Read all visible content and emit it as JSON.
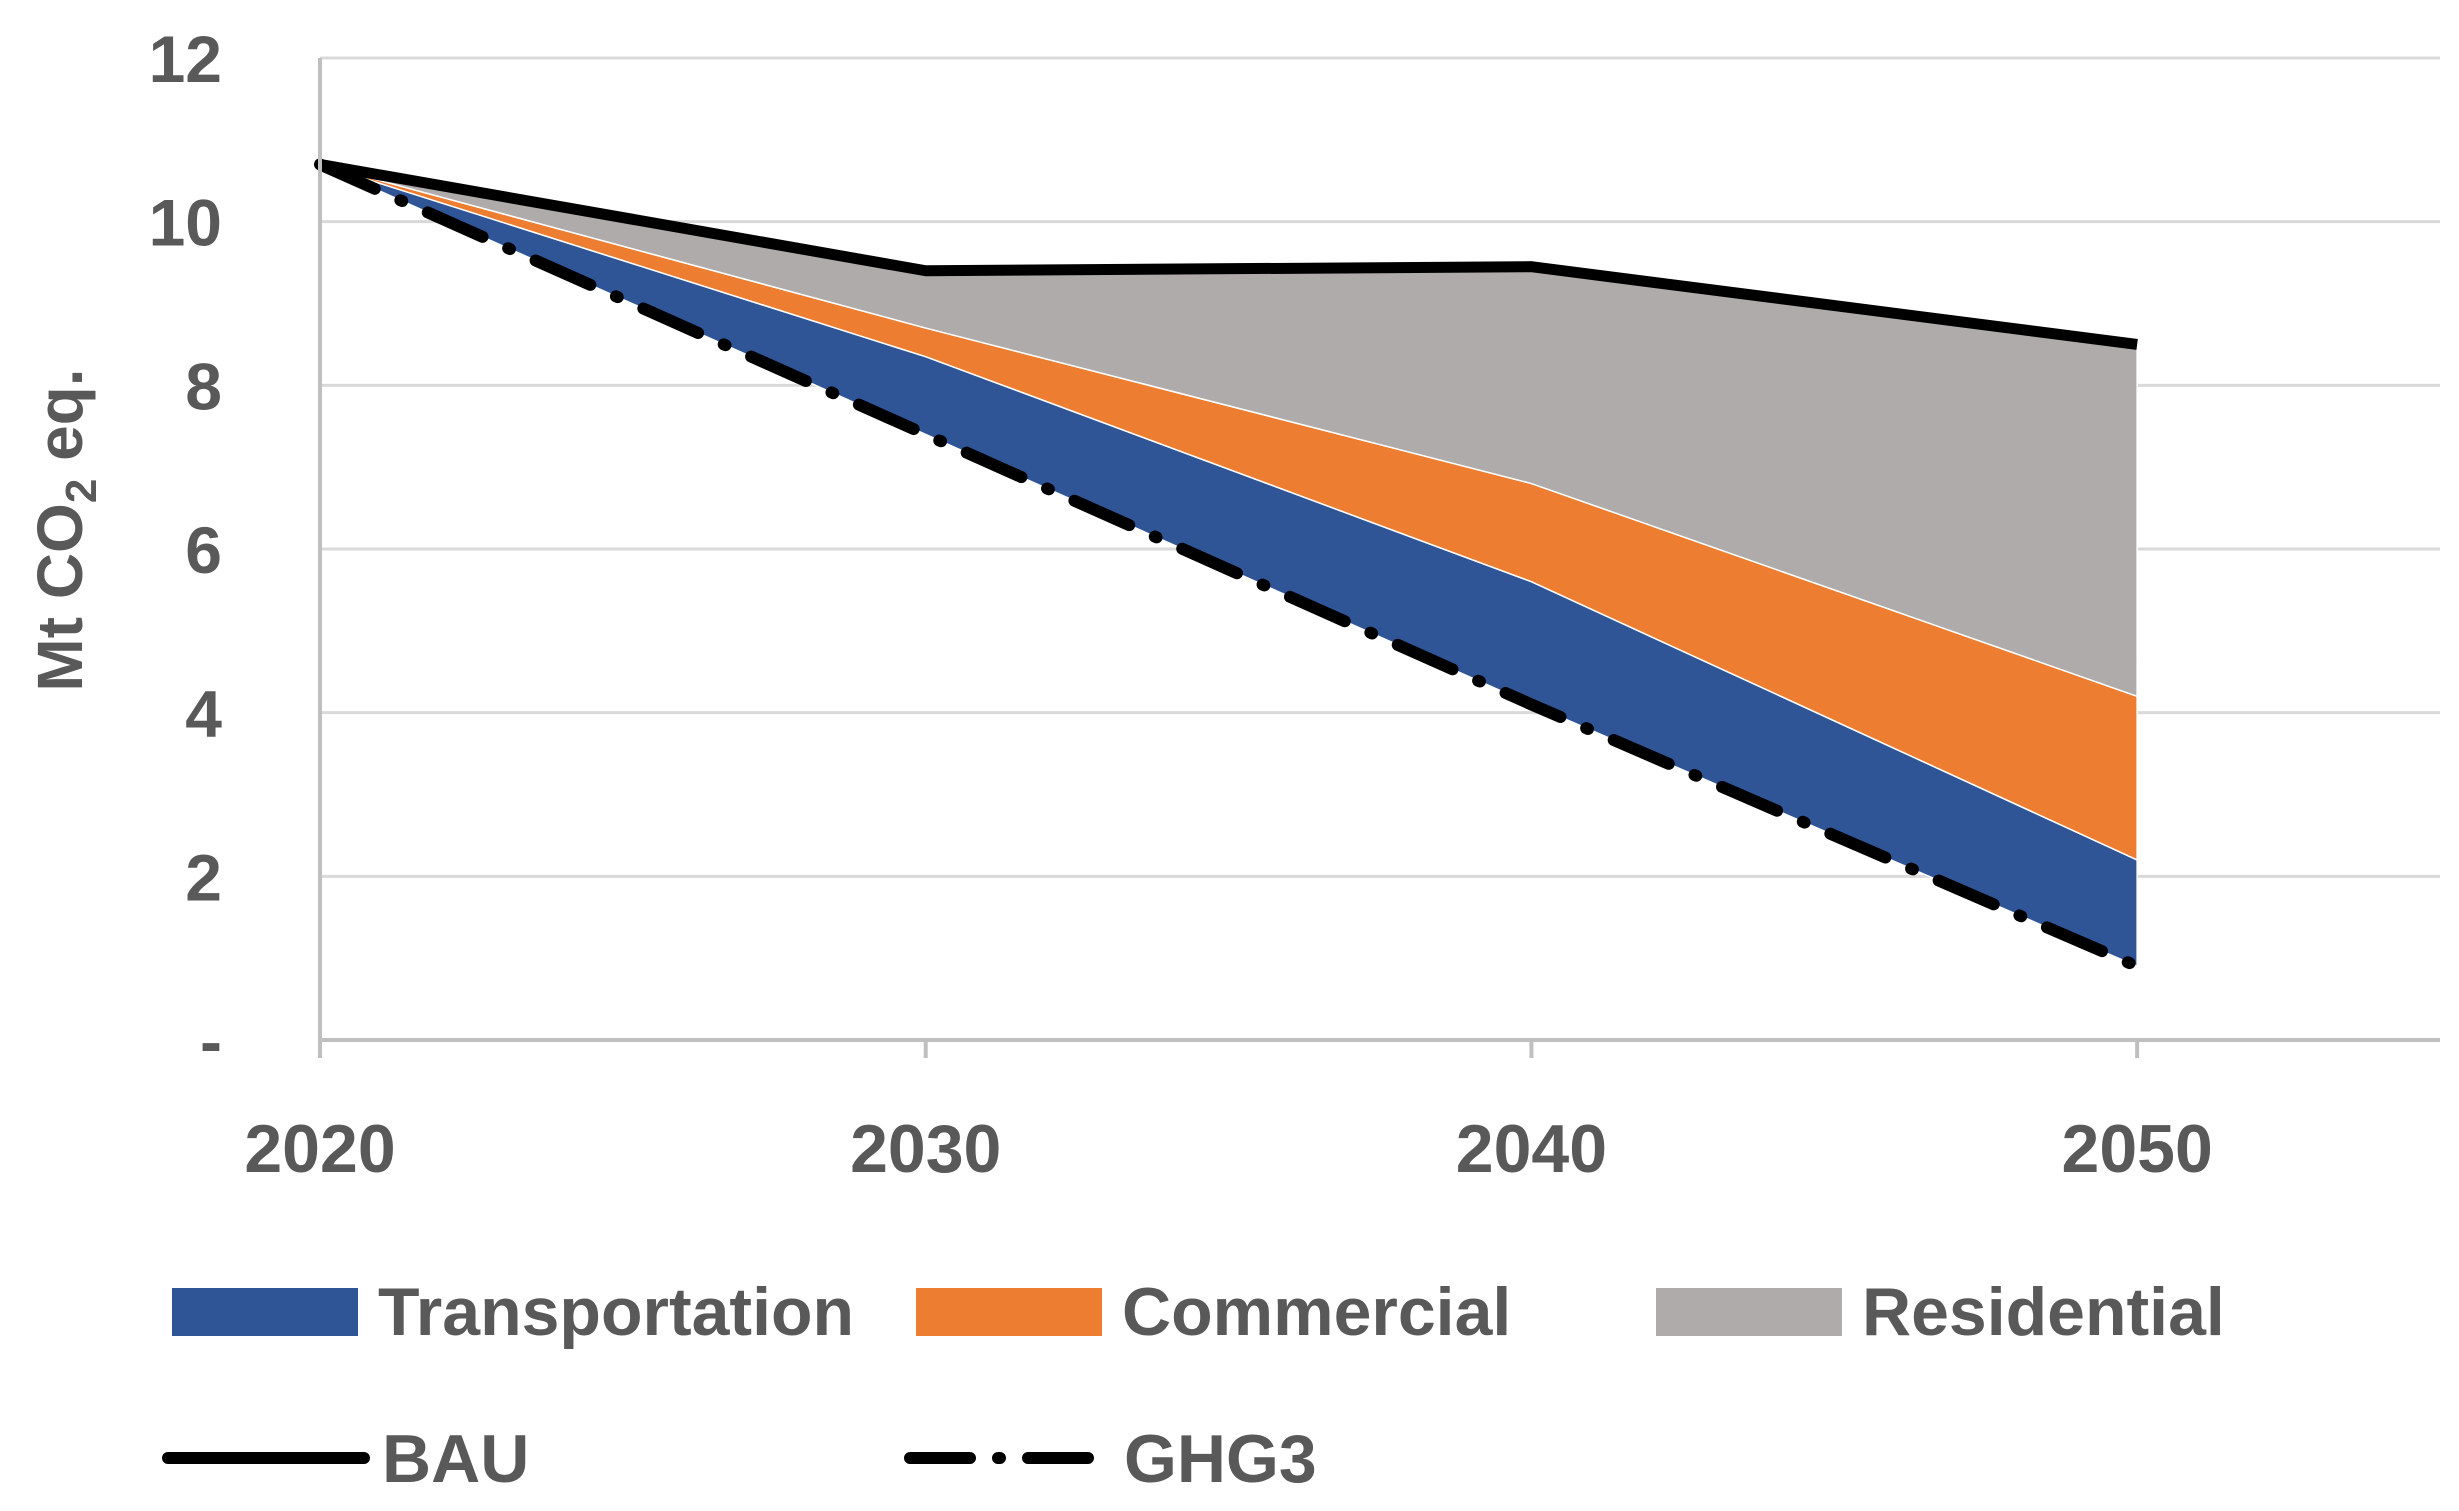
{
  "chart_data": {
    "type": "area",
    "title": "",
    "xlabel": "",
    "ylabel": {
      "prefix": "Mt  CO",
      "subscript": "2",
      "suffix": " eq."
    },
    "x": [
      2020,
      2030,
      2040,
      2050
    ],
    "xticks": [
      "2020",
      "2030",
      "2040",
      "2050"
    ],
    "xlim": [
      2020,
      2055
    ],
    "ylim": [
      0,
      12
    ],
    "yticks": [
      {
        "value": 0,
        "label": "-"
      },
      {
        "value": 2,
        "label": "2"
      },
      {
        "value": 4,
        "label": "4"
      },
      {
        "value": 6,
        "label": "6"
      },
      {
        "value": 8,
        "label": "8"
      },
      {
        "value": 10,
        "label": "10"
      },
      {
        "value": 12,
        "label": "12"
      }
    ],
    "grid": true,
    "legend_position": "bottom",
    "stacked_series": [
      {
        "name": "Transportation",
        "color": "#2F5597",
        "lower": [
          10.7,
          7.4,
          4.1,
          0.9
        ],
        "upper": [
          10.7,
          8.35,
          5.6,
          2.2
        ]
      },
      {
        "name": "Commercial",
        "color": "#ED7D31",
        "lower": [
          10.7,
          8.35,
          5.6,
          2.2
        ],
        "upper": [
          10.7,
          8.7,
          6.8,
          4.2
        ]
      },
      {
        "name": "Residential",
        "color": "#AFABAB",
        "lower": [
          10.7,
          8.7,
          6.8,
          4.2
        ],
        "upper": [
          10.7,
          9.4,
          9.45,
          8.5
        ]
      }
    ],
    "line_series": [
      {
        "name": "BAU",
        "style": "solid",
        "color": "#000000",
        "values": [
          10.7,
          9.4,
          9.45,
          8.5
        ]
      },
      {
        "name": "GHG3",
        "style": "dash-dot",
        "color": "#000000",
        "values": [
          10.7,
          7.4,
          4.1,
          0.9
        ]
      }
    ]
  }
}
